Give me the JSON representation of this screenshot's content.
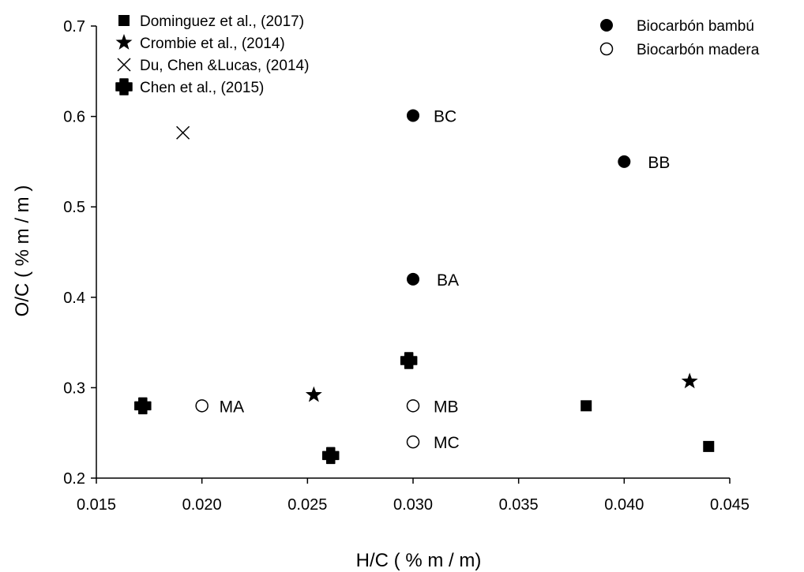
{
  "chart_data": {
    "type": "scatter",
    "xlabel": "H/C ( % m / m)",
    "ylabel": "O/C ( % m / m )",
    "xlim": [
      0.015,
      0.045
    ],
    "ylim": [
      0.2,
      0.7
    ],
    "xticks": [
      "0.015",
      "0.020",
      "0.025",
      "0.030",
      "0.035",
      "0.040",
      "0.045"
    ],
    "yticks": [
      "0.2",
      "0.3",
      "0.4",
      "0.5",
      "0.6",
      "0.7"
    ],
    "grid": false,
    "legend_placement": [
      "top-left",
      "top-right"
    ],
    "series": [
      {
        "name": "Dominguez et al., (2017)",
        "marker": "filled-square",
        "points": [
          {
            "x": 0.0382,
            "y": 0.28
          },
          {
            "x": 0.044,
            "y": 0.235
          }
        ]
      },
      {
        "name": "Crombie et al., (2014)",
        "marker": "filled-star",
        "points": [
          {
            "x": 0.0253,
            "y": 0.292
          },
          {
            "x": 0.0431,
            "y": 0.307
          }
        ]
      },
      {
        "name": "Du, Chen &Lucas, (2014)",
        "marker": "x-cross",
        "points": [
          {
            "x": 0.0191,
            "y": 0.582
          }
        ]
      },
      {
        "name": "Chen et al., (2015)",
        "marker": "filled-cross",
        "points": [
          {
            "x": 0.0172,
            "y": 0.28
          },
          {
            "x": 0.0261,
            "y": 0.225
          },
          {
            "x": 0.0298,
            "y": 0.33
          }
        ]
      },
      {
        "name": "Biocarbón bambú",
        "marker": "filled-circle",
        "points": [
          {
            "x": 0.03,
            "y": 0.601,
            "label": "BC"
          },
          {
            "x": 0.04,
            "y": 0.55,
            "label": "BB"
          },
          {
            "x": 0.03,
            "y": 0.42,
            "label": "BA"
          }
        ]
      },
      {
        "name": "Biocarbón madera",
        "marker": "open-circle",
        "points": [
          {
            "x": 0.02,
            "y": 0.28,
            "label": "MA"
          },
          {
            "x": 0.03,
            "y": 0.28,
            "label": "MB"
          },
          {
            "x": 0.03,
            "y": 0.24,
            "label": "MC"
          }
        ]
      }
    ]
  }
}
